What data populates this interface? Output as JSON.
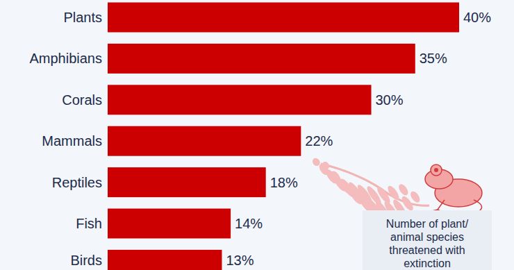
{
  "chart_data": {
    "type": "bar",
    "orientation": "horizontal",
    "categories": [
      "Plants",
      "Amphibians",
      "Corals",
      "Mammals",
      "Reptiles",
      "Fish",
      "Birds"
    ],
    "values": [
      40,
      35,
      30,
      22,
      18,
      14,
      13
    ],
    "value_labels": [
      "40%",
      "35%",
      "30%",
      "22%",
      "18%",
      "14%",
      "13%"
    ],
    "color": "#cc0000",
    "xlim": [
      0,
      40
    ],
    "tick_labels": false,
    "data_labels": true,
    "grid": false,
    "annotation": "Number of plant/ animal species threatened with extinction"
  }
}
